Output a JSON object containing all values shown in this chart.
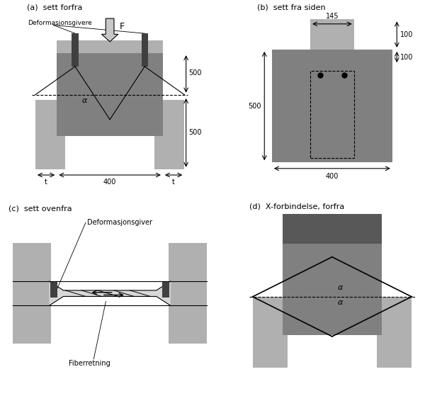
{
  "bg_color": "#ffffff",
  "light_gray": "#b0b0b0",
  "mid_gray": "#808080",
  "dark_gray": "#585858",
  "darker_gray": "#404040",
  "arrow_gray": "#c8c8c8",
  "titles": [
    "(a)  sett forfra",
    "(b)  sett fra siden",
    "(c)  sett ovenfra",
    "(d)  X-forbindelse, forfra"
  ]
}
